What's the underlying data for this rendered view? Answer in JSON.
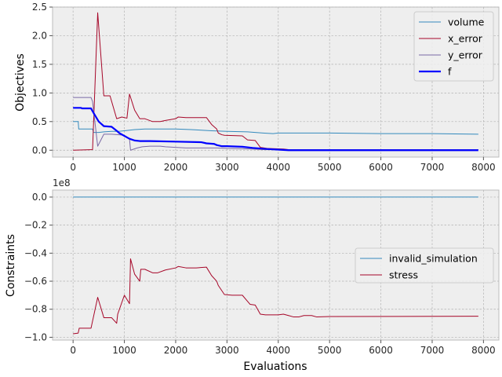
{
  "chart_data": [
    {
      "type": "line",
      "ylabel": "Objectives",
      "xlim": [
        -400,
        8300
      ],
      "ylim": [
        -0.12,
        2.5
      ],
      "grid": true,
      "legend_placement": "top-right",
      "xticks": [
        0,
        1000,
        2000,
        3000,
        4000,
        5000,
        6000,
        7000,
        8000
      ],
      "xtick_labels": [
        "0",
        "1000",
        "2000",
        "3000",
        "4000",
        "5000",
        "6000",
        "7000",
        "8000"
      ],
      "yticks": [
        0.0,
        0.5,
        1.0,
        1.5,
        2.0,
        2.5
      ],
      "ytick_labels": [
        "0.0",
        "0.5",
        "1.0",
        "1.5",
        "2.0",
        "2.5"
      ],
      "series": [
        {
          "name": "volume",
          "color": "#348abd",
          "width": 1,
          "points": [
            [
              0,
              0.5
            ],
            [
              100,
              0.5
            ],
            [
              110,
              0.37
            ],
            [
              380,
              0.37
            ],
            [
              400,
              0.31
            ],
            [
              500,
              0.31
            ],
            [
              600,
              0.32
            ],
            [
              750,
              0.33
            ],
            [
              900,
              0.33
            ],
            [
              1000,
              0.34
            ],
            [
              1100,
              0.35
            ],
            [
              1200,
              0.36
            ],
            [
              1400,
              0.37
            ],
            [
              1600,
              0.37
            ],
            [
              2000,
              0.37
            ],
            [
              2300,
              0.36
            ],
            [
              2500,
              0.35
            ],
            [
              2700,
              0.34
            ],
            [
              3000,
              0.33
            ],
            [
              3400,
              0.32
            ],
            [
              3700,
              0.3
            ],
            [
              3900,
              0.29
            ],
            [
              4000,
              0.3
            ],
            [
              5000,
              0.3
            ],
            [
              6000,
              0.29
            ],
            [
              7000,
              0.29
            ],
            [
              7900,
              0.28
            ]
          ]
        },
        {
          "name": "x_error",
          "color": "#a60628",
          "width": 1,
          "points": [
            [
              0,
              0.0
            ],
            [
              380,
              0.01
            ],
            [
              480,
              2.4
            ],
            [
              600,
              0.95
            ],
            [
              720,
              0.95
            ],
            [
              850,
              0.55
            ],
            [
              950,
              0.58
            ],
            [
              1050,
              0.56
            ],
            [
              1100,
              0.98
            ],
            [
              1200,
              0.7
            ],
            [
              1300,
              0.55
            ],
            [
              1400,
              0.55
            ],
            [
              1550,
              0.5
            ],
            [
              1700,
              0.5
            ],
            [
              1800,
              0.52
            ],
            [
              2000,
              0.55
            ],
            [
              2050,
              0.58
            ],
            [
              2200,
              0.57
            ],
            [
              2400,
              0.57
            ],
            [
              2600,
              0.57
            ],
            [
              2700,
              0.45
            ],
            [
              2800,
              0.37
            ],
            [
              2830,
              0.3
            ],
            [
              2900,
              0.27
            ],
            [
              2950,
              0.26
            ],
            [
              3300,
              0.25
            ],
            [
              3400,
              0.18
            ],
            [
              3550,
              0.17
            ],
            [
              3650,
              0.05
            ],
            [
              3800,
              0.03
            ],
            [
              4100,
              0.02
            ],
            [
              4200,
              0.01
            ],
            [
              5000,
              0.01
            ],
            [
              7900,
              0.01
            ]
          ]
        },
        {
          "name": "y_error",
          "color": "#7a68a6",
          "width": 1,
          "points": [
            [
              0,
              0.92
            ],
            [
              350,
              0.92
            ],
            [
              380,
              0.85
            ],
            [
              480,
              0.07
            ],
            [
              600,
              0.28
            ],
            [
              750,
              0.28
            ],
            [
              900,
              0.27
            ],
            [
              1000,
              0.26
            ],
            [
              1100,
              0.2
            ],
            [
              1120,
              0.0
            ],
            [
              1250,
              0.04
            ],
            [
              1350,
              0.06
            ],
            [
              1500,
              0.07
            ],
            [
              1700,
              0.07
            ],
            [
              1800,
              0.06
            ],
            [
              2000,
              0.05
            ],
            [
              2200,
              0.04
            ],
            [
              2500,
              0.04
            ],
            [
              2800,
              0.04
            ],
            [
              3000,
              0.03
            ],
            [
              3500,
              0.02
            ],
            [
              3700,
              0.01
            ],
            [
              4100,
              0.01
            ],
            [
              7900,
              0.01
            ]
          ]
        },
        {
          "name": "f",
          "color": "#0000ff",
          "width": 2.2,
          "points": [
            [
              0,
              0.74
            ],
            [
              150,
              0.74
            ],
            [
              180,
              0.73
            ],
            [
              350,
              0.73
            ],
            [
              400,
              0.65
            ],
            [
              500,
              0.5
            ],
            [
              600,
              0.42
            ],
            [
              750,
              0.41
            ],
            [
              850,
              0.34
            ],
            [
              900,
              0.3
            ],
            [
              1000,
              0.25
            ],
            [
              1100,
              0.2
            ],
            [
              1200,
              0.17
            ],
            [
              1300,
              0.16
            ],
            [
              1500,
              0.16
            ],
            [
              2000,
              0.15
            ],
            [
              2500,
              0.14
            ],
            [
              2600,
              0.12
            ],
            [
              2750,
              0.11
            ],
            [
              2800,
              0.09
            ],
            [
              2900,
              0.07
            ],
            [
              3000,
              0.07
            ],
            [
              3300,
              0.06
            ],
            [
              3500,
              0.04
            ],
            [
              3800,
              0.02
            ],
            [
              4000,
              0.01
            ],
            [
              4200,
              0.0
            ],
            [
              7900,
              0.0
            ]
          ]
        }
      ]
    },
    {
      "type": "line",
      "xlabel": "Evaluations",
      "ylabel": "Constraints",
      "offset_text": "1e8",
      "xlim": [
        -400,
        8300
      ],
      "ylim": [
        -1.02,
        0.05
      ],
      "grid": true,
      "legend_placement": "center-right",
      "xticks": [
        0,
        1000,
        2000,
        3000,
        4000,
        5000,
        6000,
        7000,
        8000
      ],
      "xtick_labels": [
        "0",
        "1000",
        "2000",
        "3000",
        "4000",
        "5000",
        "6000",
        "7000",
        "8000"
      ],
      "yticks": [
        0.0,
        -0.2,
        -0.4,
        -0.6,
        -0.8,
        -1.0
      ],
      "ytick_labels": [
        "0.0",
        "−0.2",
        "−0.4",
        "−0.6",
        "−0.8",
        "−1.0"
      ],
      "series": [
        {
          "name": "invalid_simulation",
          "color": "#348abd",
          "width": 1,
          "points": [
            [
              0,
              0.0
            ],
            [
              7900,
              0.0
            ]
          ]
        },
        {
          "name": "stress",
          "color": "#a60628",
          "width": 1,
          "points": [
            [
              0,
              -0.975
            ],
            [
              100,
              -0.97
            ],
            [
              120,
              -0.935
            ],
            [
              350,
              -0.935
            ],
            [
              480,
              -0.715
            ],
            [
              600,
              -0.86
            ],
            [
              750,
              -0.86
            ],
            [
              850,
              -0.9
            ],
            [
              870,
              -0.835
            ],
            [
              1000,
              -0.7
            ],
            [
              1100,
              -0.76
            ],
            [
              1120,
              -0.44
            ],
            [
              1200,
              -0.55
            ],
            [
              1300,
              -0.6
            ],
            [
              1320,
              -0.515
            ],
            [
              1400,
              -0.515
            ],
            [
              1550,
              -0.54
            ],
            [
              1650,
              -0.54
            ],
            [
              1800,
              -0.52
            ],
            [
              2000,
              -0.505
            ],
            [
              2050,
              -0.495
            ],
            [
              2200,
              -0.505
            ],
            [
              2400,
              -0.505
            ],
            [
              2600,
              -0.5
            ],
            [
              2700,
              -0.56
            ],
            [
              2800,
              -0.6
            ],
            [
              2830,
              -0.63
            ],
            [
              2950,
              -0.695
            ],
            [
              3100,
              -0.7
            ],
            [
              3300,
              -0.7
            ],
            [
              3450,
              -0.765
            ],
            [
              3550,
              -0.77
            ],
            [
              3650,
              -0.835
            ],
            [
              3750,
              -0.84
            ],
            [
              4000,
              -0.84
            ],
            [
              4100,
              -0.835
            ],
            [
              4200,
              -0.845
            ],
            [
              4300,
              -0.855
            ],
            [
              4400,
              -0.855
            ],
            [
              4500,
              -0.845
            ],
            [
              4650,
              -0.845
            ],
            [
              4750,
              -0.855
            ],
            [
              5000,
              -0.852
            ],
            [
              7900,
              -0.85
            ]
          ]
        }
      ]
    }
  ]
}
